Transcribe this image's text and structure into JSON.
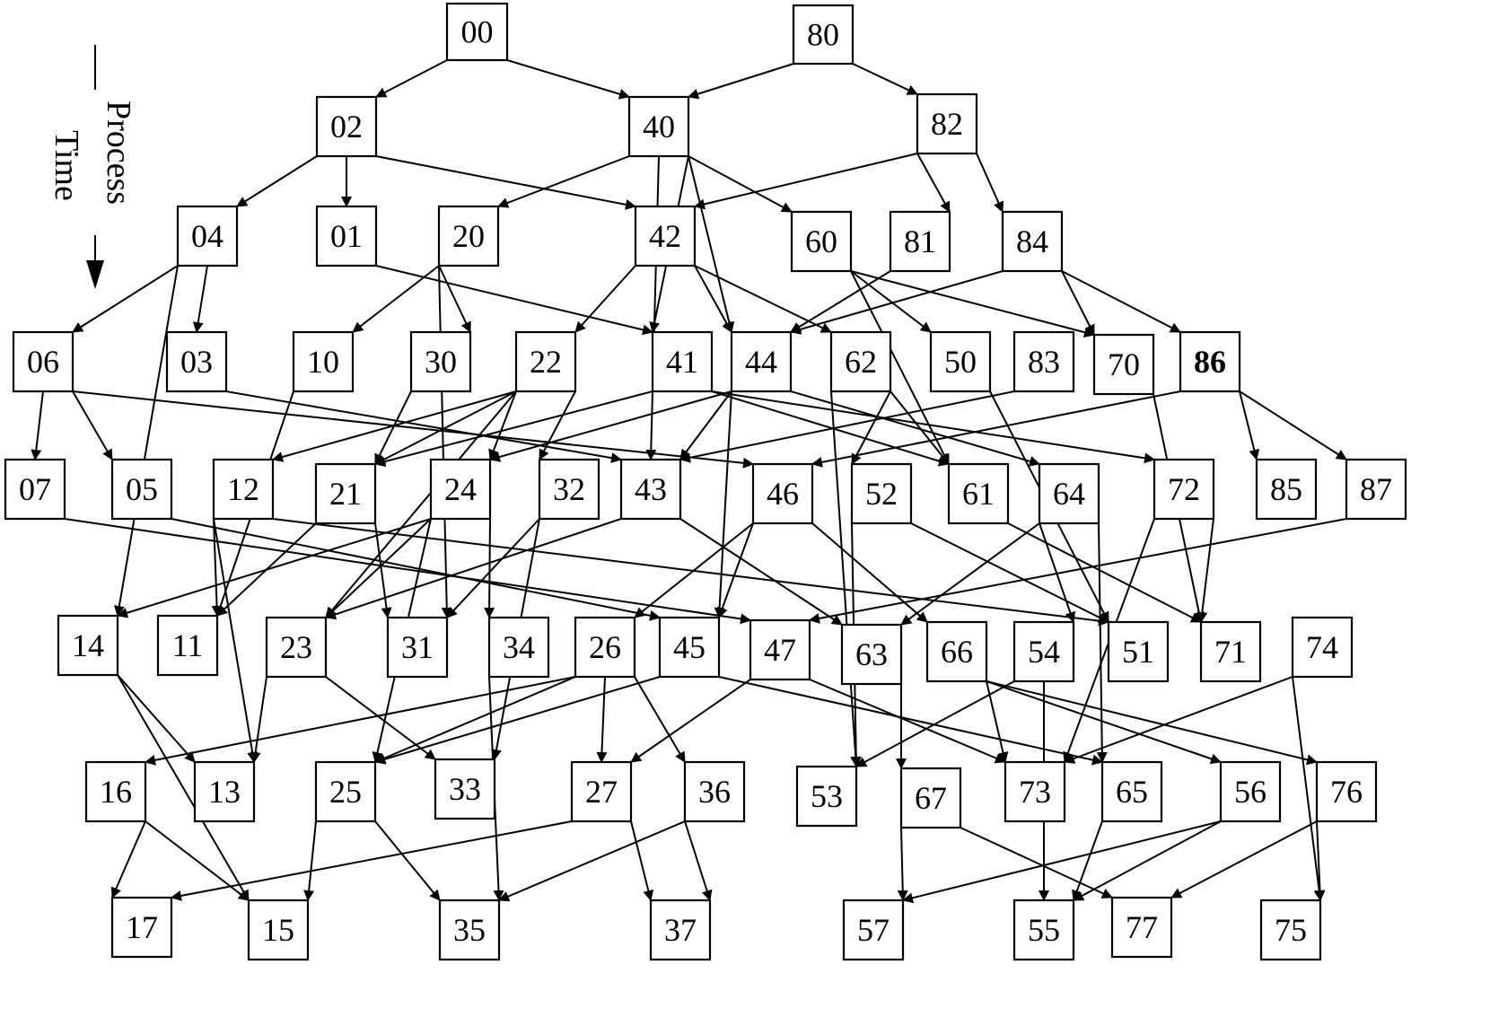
{
  "legend": {
    "line1": "Process",
    "line2": "Time"
  },
  "bold_nodes": [
    "86"
  ],
  "nodes": [
    "00",
    "80",
    "02",
    "40",
    "82",
    "04",
    "01",
    "20",
    "42",
    "60",
    "81",
    "84",
    "06",
    "03",
    "10",
    "30",
    "22",
    "41",
    "44",
    "62",
    "50",
    "83",
    "70",
    "86",
    "07",
    "05",
    "12",
    "21",
    "24",
    "32",
    "43",
    "46",
    "52",
    "61",
    "64",
    "72",
    "85",
    "87",
    "14",
    "11",
    "23",
    "31",
    "34",
    "26",
    "45",
    "47",
    "63",
    "66",
    "54",
    "51",
    "71",
    "74",
    "16",
    "13",
    "25",
    "33",
    "27",
    "36",
    "53",
    "67",
    "73",
    "65",
    "56",
    "76",
    "17",
    "15",
    "35",
    "37",
    "57",
    "55",
    "77",
    "75"
  ],
  "edges": [
    [
      "00",
      "02"
    ],
    [
      "00",
      "40"
    ],
    [
      "80",
      "40"
    ],
    [
      "80",
      "82"
    ],
    [
      "02",
      "04"
    ],
    [
      "02",
      "01"
    ],
    [
      "02",
      "42"
    ],
    [
      "40",
      "20"
    ],
    [
      "40",
      "60"
    ],
    [
      "40",
      "41"
    ],
    [
      "40",
      "44"
    ],
    [
      "40",
      "43"
    ],
    [
      "82",
      "42"
    ],
    [
      "82",
      "81"
    ],
    [
      "82",
      "84"
    ],
    [
      "04",
      "06"
    ],
    [
      "04",
      "03"
    ],
    [
      "04",
      "14"
    ],
    [
      "01",
      "41"
    ],
    [
      "20",
      "10"
    ],
    [
      "20",
      "30"
    ],
    [
      "20",
      "31"
    ],
    [
      "42",
      "22"
    ],
    [
      "42",
      "44"
    ],
    [
      "42",
      "62"
    ],
    [
      "60",
      "50"
    ],
    [
      "60",
      "70"
    ],
    [
      "60",
      "61"
    ],
    [
      "81",
      "44"
    ],
    [
      "84",
      "44"
    ],
    [
      "84",
      "70"
    ],
    [
      "84",
      "86"
    ],
    [
      "06",
      "07"
    ],
    [
      "06",
      "05"
    ],
    [
      "06",
      "46"
    ],
    [
      "03",
      "43"
    ],
    [
      "10",
      "11"
    ],
    [
      "30",
      "21"
    ],
    [
      "22",
      "12"
    ],
    [
      "22",
      "21"
    ],
    [
      "22",
      "24"
    ],
    [
      "22",
      "32"
    ],
    [
      "22",
      "23"
    ],
    [
      "41",
      "21"
    ],
    [
      "41",
      "61"
    ],
    [
      "41",
      "72"
    ],
    [
      "44",
      "24"
    ],
    [
      "44",
      "43"
    ],
    [
      "44",
      "45"
    ],
    [
      "44",
      "64"
    ],
    [
      "62",
      "52"
    ],
    [
      "62",
      "61"
    ],
    [
      "62",
      "53"
    ],
    [
      "50",
      "51"
    ],
    [
      "83",
      "43"
    ],
    [
      "70",
      "71"
    ],
    [
      "86",
      "46"
    ],
    [
      "86",
      "85"
    ],
    [
      "86",
      "87"
    ],
    [
      "07",
      "47"
    ],
    [
      "05",
      "45"
    ],
    [
      "12",
      "11"
    ],
    [
      "12",
      "13"
    ],
    [
      "12",
      "51"
    ],
    [
      "21",
      "11"
    ],
    [
      "21",
      "31"
    ],
    [
      "24",
      "14"
    ],
    [
      "24",
      "23"
    ],
    [
      "24",
      "34"
    ],
    [
      "24",
      "25"
    ],
    [
      "32",
      "31"
    ],
    [
      "32",
      "33"
    ],
    [
      "43",
      "23"
    ],
    [
      "43",
      "63"
    ],
    [
      "46",
      "26"
    ],
    [
      "46",
      "45"
    ],
    [
      "46",
      "66"
    ],
    [
      "52",
      "51"
    ],
    [
      "52",
      "53"
    ],
    [
      "61",
      "71"
    ],
    [
      "64",
      "63"
    ],
    [
      "64",
      "54"
    ],
    [
      "64",
      "65"
    ],
    [
      "72",
      "73"
    ],
    [
      "72",
      "71"
    ],
    [
      "87",
      "47"
    ],
    [
      "14",
      "13"
    ],
    [
      "14",
      "15"
    ],
    [
      "23",
      "13"
    ],
    [
      "23",
      "33"
    ],
    [
      "34",
      "35"
    ],
    [
      "26",
      "16"
    ],
    [
      "26",
      "25"
    ],
    [
      "26",
      "27"
    ],
    [
      "26",
      "36"
    ],
    [
      "45",
      "25"
    ],
    [
      "45",
      "65"
    ],
    [
      "47",
      "27"
    ],
    [
      "47",
      "73"
    ],
    [
      "63",
      "67"
    ],
    [
      "66",
      "73"
    ],
    [
      "66",
      "56"
    ],
    [
      "66",
      "76"
    ],
    [
      "54",
      "53"
    ],
    [
      "54",
      "55"
    ],
    [
      "74",
      "73"
    ],
    [
      "74",
      "75"
    ],
    [
      "16",
      "17"
    ],
    [
      "16",
      "15"
    ],
    [
      "25",
      "15"
    ],
    [
      "25",
      "35"
    ],
    [
      "27",
      "17"
    ],
    [
      "27",
      "37"
    ],
    [
      "36",
      "35"
    ],
    [
      "36",
      "37"
    ],
    [
      "67",
      "57"
    ],
    [
      "67",
      "77"
    ],
    [
      "65",
      "55"
    ],
    [
      "56",
      "57"
    ],
    [
      "56",
      "55"
    ],
    [
      "76",
      "77"
    ],
    [
      "76",
      "75"
    ]
  ]
}
